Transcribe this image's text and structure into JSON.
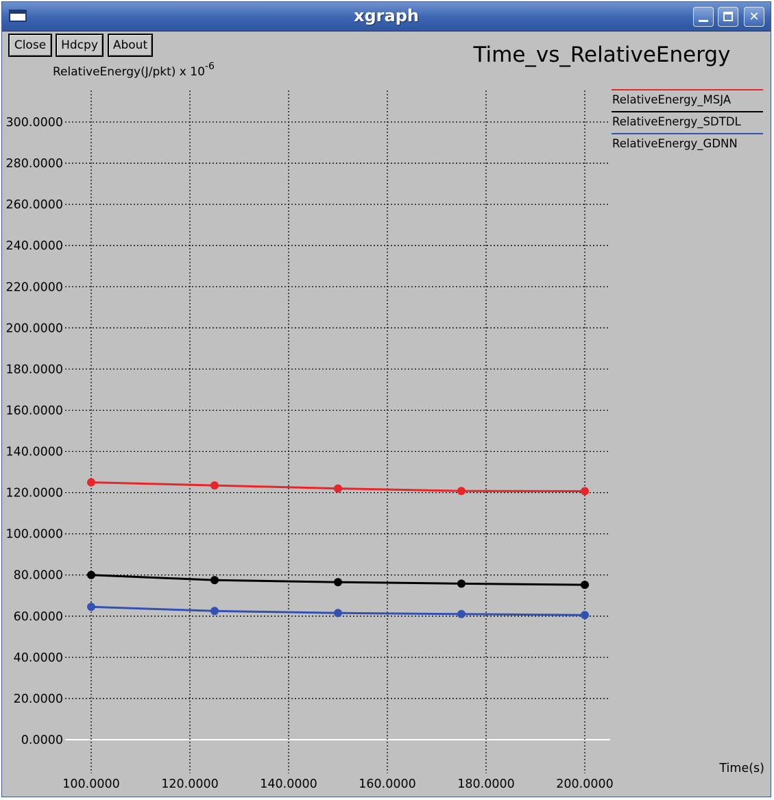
{
  "window": {
    "title": "xgraph"
  },
  "toolbar": {
    "close_label": "Close",
    "hdcpy_label": "Hdcpy",
    "about_label": "About"
  },
  "chart_data": {
    "type": "line",
    "title": "Time_vs_RelativeEnergy",
    "ylabel": "RelativeEnergy(J/pkt) x 10",
    "ylabel_exponent": "-6",
    "xlabel": "Time(s)",
    "xlim": [
      100,
      200
    ],
    "ylim": [
      0,
      300
    ],
    "x_ticks": [
      100,
      120,
      140,
      160,
      180,
      200
    ],
    "x_tick_labels": [
      "100.0000",
      "120.0000",
      "140.0000",
      "160.0000",
      "180.0000",
      "200.0000"
    ],
    "y_ticks": [
      0,
      20,
      40,
      60,
      80,
      100,
      120,
      140,
      160,
      180,
      200,
      220,
      240,
      260,
      280,
      300
    ],
    "y_tick_labels": [
      "0.0000",
      "20.0000",
      "40.0000",
      "60.0000",
      "80.0000",
      "100.0000",
      "120.0000",
      "140.0000",
      "160.0000",
      "180.0000",
      "200.0000",
      "220.0000",
      "240.0000",
      "260.0000",
      "280.0000",
      "300.0000"
    ],
    "grid": true,
    "legend_position": "right",
    "series": [
      {
        "name": "RelativeEnergy_MSJA",
        "color": "#e8262a",
        "x": [
          100,
          125,
          150,
          175,
          200
        ],
        "y": [
          125,
          123.5,
          122,
          120.8,
          120.7
        ]
      },
      {
        "name": "RelativeEnergy_SDTDL",
        "color": "#000000",
        "x": [
          100,
          125,
          150,
          175,
          200
        ],
        "y": [
          80,
          77.5,
          76.5,
          75.8,
          75.2
        ]
      },
      {
        "name": "RelativeEnergy_GDNN",
        "color": "#3351b0",
        "x": [
          100,
          125,
          150,
          175,
          200
        ],
        "y": [
          64.5,
          62.5,
          61.5,
          61,
          60.5
        ]
      }
    ]
  }
}
